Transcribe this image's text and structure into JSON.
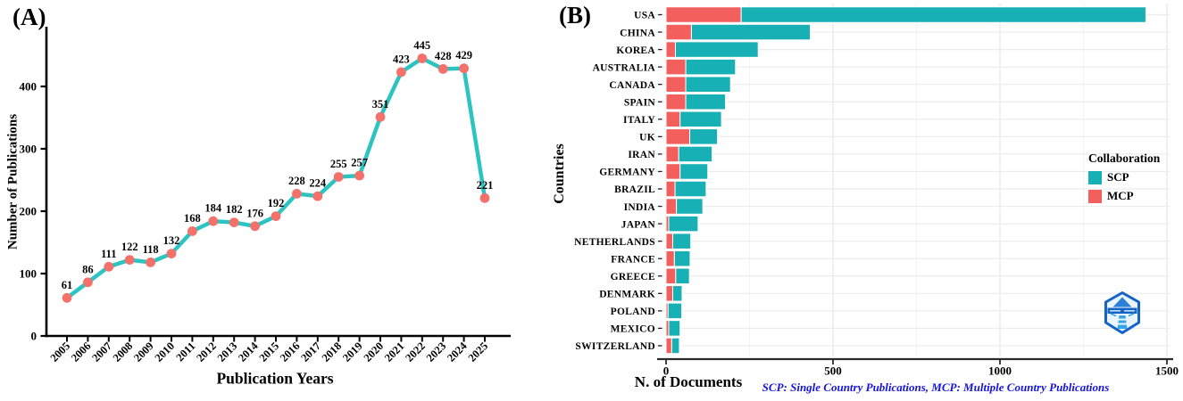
{
  "chart_data": [
    {
      "panel_label": "(A)",
      "type": "line",
      "x": [
        2005,
        2006,
        2007,
        2008,
        2009,
        2010,
        2011,
        2012,
        2013,
        2014,
        2015,
        2016,
        2017,
        2018,
        2019,
        2020,
        2021,
        2022,
        2023,
        2024,
        2025
      ],
      "y": [
        61,
        86,
        111,
        122,
        118,
        132,
        168,
        184,
        182,
        176,
        192,
        228,
        224,
        255,
        257,
        351,
        423,
        445,
        428,
        429,
        221
      ],
      "xlabel": "Publication Years",
      "ylabel": "Number of Publications",
      "yticks": [
        0,
        100,
        200,
        300,
        400
      ],
      "ylim": [
        0,
        490
      ],
      "grid": "off",
      "line_color": "#2bc4c1",
      "point_color": "#f4716b",
      "point_labels_shown": true
    },
    {
      "panel_label": "(B)",
      "type": "stacked-bar-horizontal",
      "categories": [
        "USA",
        "CHINA",
        "KOREA",
        "AUSTRALIA",
        "CANADA",
        "SPAIN",
        "ITALY",
        "UK",
        "IRAN",
        "GERMANY",
        "BRAZIL",
        "INDIA",
        "JAPAN",
        "NETHERLANDS",
        "FRANCE",
        "GREECE",
        "DENMARK",
        "POLAND",
        "MEXICO",
        "SWITZERLAND"
      ],
      "series": [
        {
          "name": "MCP",
          "color": "#f25f5d",
          "values": [
            225,
            76,
            28,
            59,
            59,
            59,
            42,
            71,
            38,
            42,
            27,
            31,
            8,
            20,
            25,
            29,
            20,
            6,
            8,
            17
          ]
        },
        {
          "name": "SCP",
          "color": "#17b0b5",
          "values": [
            1212,
            356,
            248,
            149,
            134,
            119,
            124,
            83,
            100,
            83,
            93,
            79,
            88,
            54,
            47,
            41,
            28,
            41,
            34,
            23
          ]
        }
      ],
      "stack_order_left_to_right": [
        "MCP",
        "SCP"
      ],
      "xlabel": "N. of Documents",
      "ylabel": "Countries",
      "xticks": [
        0,
        500,
        1000,
        1500
      ],
      "xlim": [
        0,
        1530
      ],
      "grid": "light-horizontal-rows",
      "legend": {
        "title": "Collaboration",
        "position": "right",
        "items": [
          {
            "label": "SCP",
            "color": "#17b0b5"
          },
          {
            "label": "MCP",
            "color": "#f25f5d"
          }
        ]
      },
      "footnote": "SCP: Single Country Publications, MCP: Multiple Country Publications",
      "footnote_color": "#1414dd",
      "logo": "lighthouse-hexagon-badge"
    }
  ]
}
